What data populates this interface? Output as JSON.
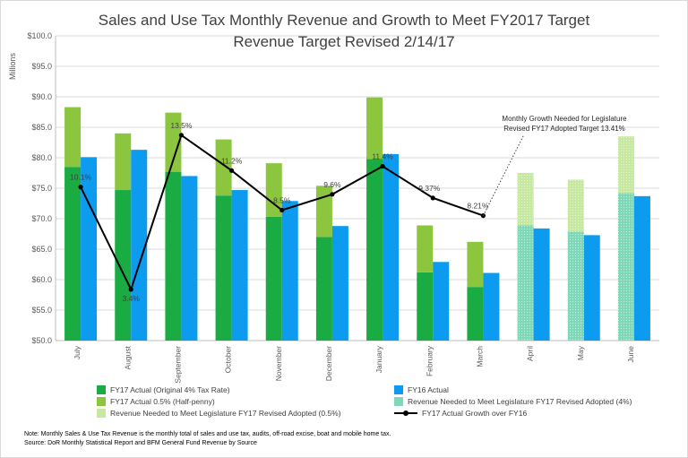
{
  "title": "Sales and Use Tax Monthly Revenue and Growth to Meet FY2017 Target",
  "subtitle": "Revenue Target Revised 2/14/17",
  "notes": [
    "Note: Monthly Sales & Use Tax Revenue is the monthly total of sales and use tax, audits, off-road excise, boat and mobile home tax.",
    "Source: DoR Monthly Statistical Report and BFM General Fund Revenue by Source"
  ],
  "annotation": [
    "Monthly Growth Needed for Legislature",
    "Revised FY17 Adopted Target 13.41%"
  ],
  "colors": {
    "fy17_base": "#1aab43",
    "fy17_half": "#8cc63f",
    "fy16": "#0d9bf0",
    "needed_base": "#7fd8b8",
    "needed_half": "#c6e8a0",
    "growth_line": "#000000"
  },
  "legend": [
    {
      "key": "fy17_base",
      "label": "FY17 Actual (Original 4% Tax Rate)"
    },
    {
      "key": "fy16",
      "label": "FY16 Actual"
    },
    {
      "key": "fy17_half",
      "label": "FY17 Actual 0.5% (Half-penny)"
    },
    {
      "key": "needed_base",
      "label": "Revenue Needed to Meet Legislature FY17 Revised Adopted (4%)"
    },
    {
      "key": "needed_half",
      "label": "Revenue Needed to Meet Legislature FY17 Revised Adopted (0.5%)"
    },
    {
      "key": "growth_line",
      "label": "FY17 Actual Growth over FY16"
    }
  ],
  "chart_data": {
    "type": "bar",
    "categories": [
      "July",
      "August",
      "September",
      "October",
      "November",
      "December",
      "January",
      "February",
      "March",
      "April",
      "May",
      "June"
    ],
    "ylabel": "Millions",
    "ylim": [
      50,
      100
    ],
    "yticks": [
      "$50.0",
      "$55.0",
      "$60.0",
      "$65.0",
      "$70.0",
      "$75.0",
      "$80.0",
      "$85.0",
      "$90.0",
      "$95.0",
      "$100.0"
    ],
    "series": [
      {
        "name": "FY17 Actual (Original 4% Tax Rate)",
        "stack": "fy17",
        "values": [
          78.5,
          74.7,
          77.7,
          73.8,
          70.3,
          67.0,
          79.8,
          61.2,
          58.8,
          null,
          null,
          null
        ]
      },
      {
        "name": "FY17 Actual 0.5% (Half-penny)",
        "stack": "fy17",
        "values": [
          9.8,
          9.3,
          9.7,
          9.2,
          8.8,
          8.4,
          10.1,
          7.7,
          7.4,
          null,
          null,
          null
        ]
      },
      {
        "name": "Revenue Needed to Meet Legislature FY17 Revised Adopted (4%)",
        "stack": "fy17",
        "values": [
          null,
          null,
          null,
          null,
          null,
          null,
          null,
          null,
          null,
          68.9,
          67.9,
          74.2
        ]
      },
      {
        "name": "Revenue Needed to Meet Legislature FY17 Revised Adopted (0.5%)",
        "stack": "fy17",
        "values": [
          null,
          null,
          null,
          null,
          null,
          null,
          null,
          null,
          null,
          8.6,
          8.5,
          9.3
        ]
      },
      {
        "name": "FY16 Actual",
        "stack": "fy16",
        "values": [
          80.1,
          81.3,
          77.0,
          74.7,
          72.9,
          68.8,
          80.6,
          62.9,
          61.1,
          68.4,
          67.3,
          73.7
        ]
      }
    ],
    "growth_line": {
      "name": "FY17 Actual Growth over FY16",
      "values": [
        75.2,
        58.4,
        83.7,
        77.9,
        71.4,
        74.0,
        78.6,
        73.4,
        70.5
      ],
      "labels": [
        "10.1%",
        "3.4%",
        "13.5%",
        "11.2%",
        "8.5%",
        "9.6%",
        "11.4%",
        "9.37%",
        "8.21%"
      ]
    }
  }
}
